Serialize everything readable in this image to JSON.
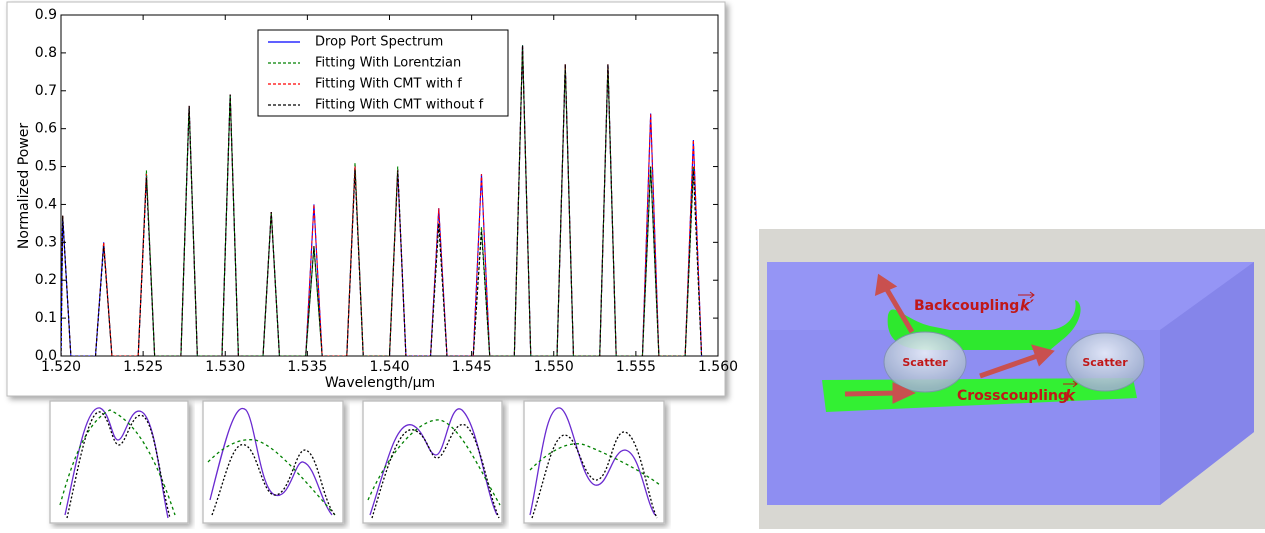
{
  "chart_data": {
    "type": "line",
    "xlabel": "Wavelength/μm",
    "ylabel": "Normalized Power",
    "x": [
      1.52,
      1.5201,
      1.5206,
      1.5221,
      1.5226,
      1.5231,
      1.5247,
      1.5252,
      1.5257,
      1.5273,
      1.5278,
      1.5283,
      1.5298,
      1.5303,
      1.5308,
      1.5323,
      1.5328,
      1.5333,
      1.5349,
      1.5354,
      1.5359,
      1.5374,
      1.5379,
      1.5384,
      1.54,
      1.5405,
      1.541,
      1.5425,
      1.543,
      1.5435,
      1.5451,
      1.5456,
      1.5461,
      1.5476,
      1.5481,
      1.5486,
      1.5502,
      1.5507,
      1.5512,
      1.5528,
      1.5533,
      1.5538,
      1.5554,
      1.5559,
      1.5564,
      1.558,
      1.5585,
      1.559
    ],
    "series": [
      {
        "name": "Drop Port Spectrum",
        "color": "#0000ff",
        "linestyle": "solid",
        "values": [
          0,
          0.37,
          0,
          0,
          0.3,
          0,
          0,
          0.48,
          0,
          0,
          0.66,
          0,
          0,
          0.69,
          0,
          0,
          0.38,
          0,
          0,
          0.4,
          0,
          0,
          0.5,
          0,
          0,
          0.49,
          0,
          0,
          0.39,
          0,
          0,
          0.48,
          0,
          0,
          0.82,
          0,
          0,
          0.77,
          0,
          0,
          0.77,
          0,
          0,
          0.64,
          0,
          0,
          0.57,
          0
        ]
      },
      {
        "name": "Fitting With Lorentzian",
        "color": "#008000",
        "linestyle": "dashed",
        "values": [
          0,
          0.37,
          0,
          0,
          0.3,
          0,
          0,
          0.49,
          0,
          0,
          0.66,
          0,
          0,
          0.69,
          0,
          0,
          0.38,
          0,
          0,
          0.29,
          0,
          0,
          0.51,
          0,
          0,
          0.5,
          0,
          0,
          0.35,
          0,
          0,
          0.34,
          0,
          0,
          0.82,
          0,
          0,
          0.77,
          0,
          0,
          0.77,
          0,
          0,
          0.5,
          0,
          0,
          0.5,
          0
        ]
      },
      {
        "name": "Fitting With CMT with f",
        "color": "#ff0000",
        "linestyle": "dashed",
        "values": [
          0,
          0.37,
          0,
          0,
          0.3,
          0,
          0,
          0.48,
          0,
          0,
          0.66,
          0,
          0,
          0.69,
          0,
          0,
          0.38,
          0,
          0,
          0.4,
          0,
          0,
          0.5,
          0,
          0,
          0.49,
          0,
          0,
          0.39,
          0,
          0,
          0.48,
          0,
          0,
          0.82,
          0,
          0,
          0.77,
          0,
          0,
          0.77,
          0,
          0,
          0.64,
          0,
          0,
          0.57,
          0
        ]
      },
      {
        "name": "Fitting With CMT without f",
        "color": "#000000",
        "linestyle": "dashed",
        "values": [
          0,
          0.37,
          0,
          0,
          0.29,
          0,
          0,
          0.47,
          0,
          0,
          0.66,
          0,
          0,
          0.69,
          0,
          0,
          0.38,
          0,
          0,
          0.29,
          0,
          0,
          0.49,
          0,
          0,
          0.49,
          0,
          0,
          0.35,
          0,
          0,
          0.33,
          0,
          0,
          0.82,
          0,
          0,
          0.77,
          0,
          0,
          0.77,
          0,
          0,
          0.5,
          0,
          0,
          0.49,
          0
        ]
      }
    ],
    "xlim": [
      1.52,
      1.56
    ],
    "xticks": [
      {
        "value": 1.52,
        "label": "1.520"
      },
      1.525,
      {
        "value": 1.53,
        "label": "1.530"
      },
      1.535,
      {
        "value": 1.54,
        "label": "1.540"
      },
      1.545,
      {
        "value": 1.55,
        "label": "1.550"
      },
      1.555,
      {
        "value": 1.56,
        "label": "1.560"
      }
    ],
    "ylim": [
      0,
      0.9
    ],
    "yticks": [
      {
        "value": 0,
        "label": "0.0"
      },
      0.1,
      0.2,
      0.3,
      0.4,
      0.5,
      0.6,
      0.7,
      0.8,
      0.9
    ],
    "legend": "upper center",
    "grid": false
  },
  "diagram": {
    "backcoupling": "Backcoupling",
    "backcoupling_symbol": "k′",
    "scatter_left": "Scatter",
    "scatter_right": "Scatter",
    "crosscoupling": "Crosscoupling",
    "crosscoupling_symbol": "k"
  }
}
